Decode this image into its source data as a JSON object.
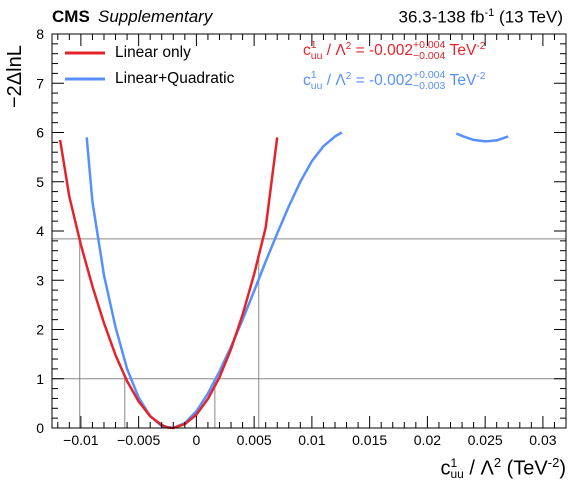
{
  "header": {
    "experiment": "CMS",
    "tag": "Supplementary",
    "lumi": "36.3-138 fb",
    "lumi_exp": "-1",
    "energy": " (13 TeV)"
  },
  "legend": {
    "linear": "Linear only",
    "quadratic": "Linear+Quadratic"
  },
  "results": {
    "linear": {
      "coef": "c",
      "coef_sup": "1",
      "coef_sub": "uu",
      "mid": " / Λ",
      "mid_sup": "2",
      "value": " = -0.002",
      "up": "+0.004",
      "down": "−0.004",
      "unit": " TeV",
      "unit_sup": "-2",
      "color": "#e3242b"
    },
    "quadratic": {
      "coef": "c",
      "coef_sup": "1",
      "coef_sub": "uu",
      "mid": " / Λ",
      "mid_sup": "2",
      "value": " = -0.002",
      "up": "+0.004",
      "down": "−0.003",
      "unit": " TeV",
      "unit_sup": "-2",
      "color": "#5790fc"
    }
  },
  "axes": {
    "ylabel": "−2ΔlnL",
    "xlabel_coef": "c",
    "xlabel_sup": "1",
    "xlabel_sub": "uu",
    "xlabel_rest": " / Λ",
    "xlabel_rest_sup": "2",
    "xlabel_unit": " (TeV",
    "xlabel_unit_sup": "-2",
    "xlabel_close": ")"
  },
  "chart_data": {
    "type": "line",
    "xlim": [
      -0.0125,
      0.032
    ],
    "ylim": [
      0,
      8
    ],
    "xticks": [
      -0.01,
      -0.005,
      0,
      0.005,
      0.01,
      0.015,
      0.02,
      0.025,
      0.03
    ],
    "xtick_labels": [
      "−0.01",
      "−0.005",
      "0",
      "0.005",
      "0.01",
      "0.015",
      "0.02",
      "0.025",
      "0.03"
    ],
    "yticks": [
      0,
      1,
      2,
      3,
      4,
      5,
      6,
      7,
      8
    ],
    "ytick_labels": [
      "0",
      "1",
      "2",
      "3",
      "4",
      "5",
      "6",
      "7",
      "8"
    ],
    "hlines": [
      1,
      3.84
    ],
    "vlines_linear": [
      -0.0101,
      -0.0062,
      0.0054
    ],
    "vlines_quadratic": [
      0.0016
    ],
    "grid": false,
    "legend_position": "top-left",
    "series": [
      {
        "name": "Linear only",
        "color": "#e3242b",
        "x": [
          -0.0118,
          -0.011,
          -0.01,
          -0.009,
          -0.008,
          -0.007,
          -0.006,
          -0.005,
          -0.004,
          -0.003,
          -0.0025,
          -0.002,
          -0.001,
          0,
          0.001,
          0.002,
          0.003,
          0.004,
          0.005,
          0.006,
          0.007
        ],
        "y": [
          5.85,
          4.7,
          3.72,
          2.88,
          2.13,
          1.48,
          0.95,
          0.54,
          0.24,
          0.06,
          0.01,
          0.0,
          0.08,
          0.27,
          0.59,
          1.03,
          1.6,
          2.3,
          3.12,
          4.07,
          5.9
        ]
      },
      {
        "name": "Linear+Quadratic",
        "color": "#5790fc",
        "x": [
          -0.0095,
          -0.009,
          -0.008,
          -0.007,
          -0.006,
          -0.005,
          -0.004,
          -0.003,
          -0.002,
          -0.001,
          0,
          0.001,
          0.002,
          0.003,
          0.004,
          0.005,
          0.006,
          0.007,
          0.008,
          0.009,
          0.01,
          0.011,
          0.012,
          0.0126
        ],
        "y": [
          5.9,
          4.6,
          3.1,
          2.05,
          1.2,
          0.62,
          0.24,
          0.04,
          0.0,
          0.1,
          0.34,
          0.7,
          1.15,
          1.65,
          2.2,
          2.78,
          3.38,
          3.95,
          4.5,
          5.0,
          5.42,
          5.72,
          5.92,
          6.0
        ]
      },
      {
        "name": "",
        "color": "#5790fc",
        "x": [
          0.0225,
          0.023,
          0.024,
          0.025,
          0.026,
          0.027
        ],
        "y": [
          5.98,
          5.93,
          5.85,
          5.82,
          5.84,
          5.92
        ]
      }
    ]
  }
}
